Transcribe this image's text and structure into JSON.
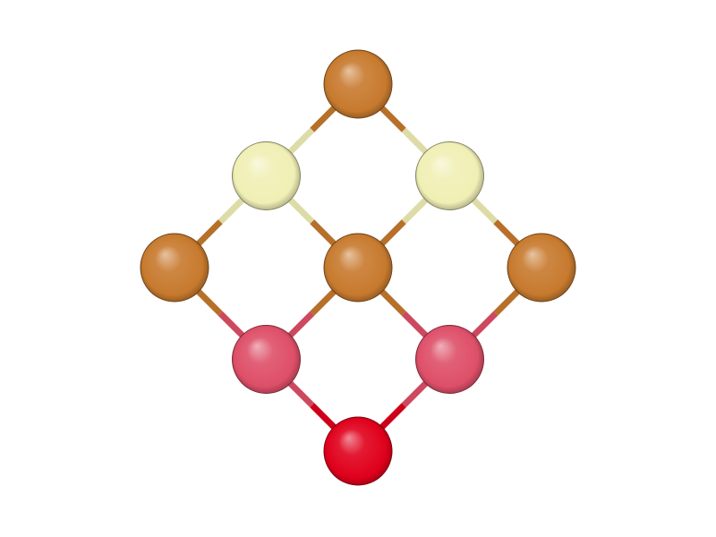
{
  "structure": {
    "atoms": [
      {
        "id": "a1",
        "color": "#c77a2e",
        "grid": [
          2,
          0
        ]
      },
      {
        "id": "a2",
        "color": "#f0efb5",
        "grid": [
          1,
          1
        ]
      },
      {
        "id": "a3",
        "color": "#f0efb5",
        "grid": [
          3,
          1
        ]
      },
      {
        "id": "a4",
        "color": "#c77a2e",
        "grid": [
          0,
          2
        ]
      },
      {
        "id": "a5",
        "color": "#c77a2e",
        "grid": [
          2,
          2
        ]
      },
      {
        "id": "a6",
        "color": "#c77a2e",
        "grid": [
          4,
          2
        ]
      },
      {
        "id": "a7",
        "color": "#de4f68",
        "grid": [
          1,
          3
        ]
      },
      {
        "id": "a8",
        "color": "#de4f68",
        "grid": [
          3,
          3
        ]
      },
      {
        "id": "a9",
        "color": "#e0001b",
        "grid": [
          2,
          4
        ]
      }
    ],
    "bonds": [
      [
        "a1",
        "a2"
      ],
      [
        "a1",
        "a3"
      ],
      [
        "a2",
        "a4"
      ],
      [
        "a2",
        "a5"
      ],
      [
        "a3",
        "a5"
      ],
      [
        "a3",
        "a6"
      ],
      [
        "a4",
        "a7"
      ],
      [
        "a5",
        "a7"
      ],
      [
        "a5",
        "a8"
      ],
      [
        "a6",
        "a8"
      ],
      [
        "a7",
        "a9"
      ],
      [
        "a8",
        "a9"
      ]
    ]
  }
}
